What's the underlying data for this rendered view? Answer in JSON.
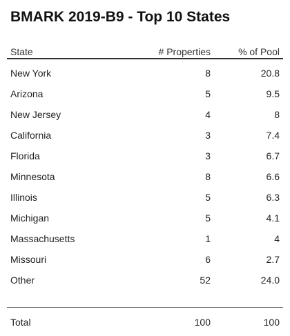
{
  "title": "BMARK 2019-B9 - Top 10 States",
  "columns": {
    "state": "State",
    "properties": "# Properties",
    "pct_pool": "% of Pool"
  },
  "rows": [
    {
      "state": "New York",
      "properties": "8",
      "pct": "20.8"
    },
    {
      "state": "Arizona",
      "properties": "5",
      "pct": "9.5"
    },
    {
      "state": "New Jersey",
      "properties": "4",
      "pct": "8"
    },
    {
      "state": "California",
      "properties": "3",
      "pct": "7.4"
    },
    {
      "state": "Florida",
      "properties": "3",
      "pct": "6.7"
    },
    {
      "state": "Minnesota",
      "properties": "8",
      "pct": "6.6"
    },
    {
      "state": "Illinois",
      "properties": "5",
      "pct": "6.3"
    },
    {
      "state": "Michigan",
      "properties": "5",
      "pct": "4.1"
    },
    {
      "state": "Massachusetts",
      "properties": "1",
      "pct": "4"
    },
    {
      "state": "Missouri",
      "properties": "6",
      "pct": "2.7"
    },
    {
      "state": "Other",
      "properties": "52",
      "pct": "24.0"
    }
  ],
  "total": {
    "label": "Total",
    "properties": "100",
    "pct": "100"
  }
}
